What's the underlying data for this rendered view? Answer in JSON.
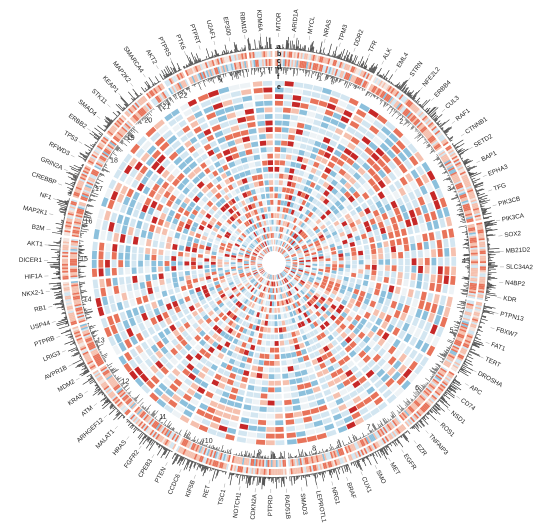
{
  "colors": {
    "amplification": "#e8735a",
    "deletion": "#8cc0dc",
    "strong": "#c62828",
    "light_red": "#f5c0ae",
    "light_blue": "#d3e6f1",
    "bars": "#222222"
  },
  "ring_labels": [
    "a",
    "b",
    "c",
    "d",
    "e",
    "f"
  ],
  "chromosomes": [
    "1",
    "2",
    "3",
    "4",
    "5",
    "6",
    "7",
    "8",
    "9",
    "10",
    "11",
    "12",
    "13",
    "14",
    "15",
    "16",
    "17",
    "18",
    "19",
    "20",
    "21",
    "22",
    "x",
    "y"
  ],
  "genes": [
    "MTOR",
    "ARID1A",
    "MYCL",
    "NRAS",
    "TPM3",
    "DDR2",
    "TFR",
    "ALK",
    "EML4",
    "STRN",
    "NFE2L2",
    "ERBB4",
    "CUL3",
    "RAF1",
    "CTNNB1",
    "SETD2",
    "BAP1",
    "EPHA3",
    "TFG",
    "PIK3CB",
    "PIK3CA",
    "SOX2",
    "MB21D2",
    "SLC34A2",
    "N4BP2",
    "KDR",
    "PTPN13",
    "FBXW7",
    "FAT1",
    "TERT",
    "DROSHA",
    "APC",
    "CD74",
    "NSD1",
    "ROS1",
    "TNFAIP3",
    "EZR",
    "EGFR",
    "MET",
    "SMO",
    "CUX1",
    "BRAF",
    "NRG1",
    "LEPROTL1",
    "SMAD3",
    "RAD51B",
    "PTPRD",
    "CDKN2A",
    "NOTCH1",
    "TSC1",
    "RET",
    "KIF5B",
    "CCDC6",
    "PTEN",
    "CPEB3",
    "FGFR2",
    "HRAS",
    "MALAT1",
    "ARHGEF12",
    "ATM",
    "KRAS",
    "MDM2",
    "AVPR1B",
    "LRIG3",
    "PTPRB",
    "USP44",
    "RB1",
    "NKX2-1",
    "HIF1A",
    "DICER1",
    "AKT1",
    "B2M",
    "MAP2K1",
    "NF1",
    "CREBBP",
    "GRIN2A",
    "RFWD3",
    "TP53",
    "ERBB2",
    "SMAD4",
    "STK11",
    "KEAP1",
    "MAP2K2",
    "SMARCA4",
    "AKT2",
    "PTPRS",
    "PTK6",
    "PTPRT",
    "U2AF1",
    "EP300",
    "RBM10",
    "KDM6A"
  ]
}
